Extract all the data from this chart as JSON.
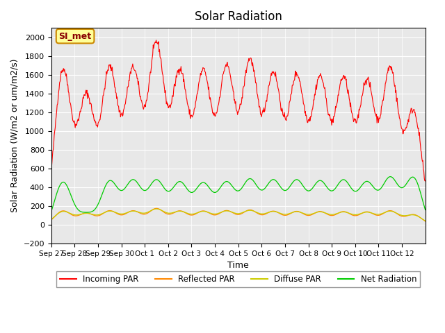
{
  "title": "Solar Radiation",
  "xlabel": "Time",
  "ylabel": "Solar Radiation (W/m2 or um/m2/s)",
  "ylim": [
    -200,
    2100
  ],
  "yticks": [
    -200,
    0,
    200,
    400,
    600,
    800,
    1000,
    1200,
    1400,
    1600,
    1800,
    2000
  ],
  "xtick_labels": [
    "Sep 27",
    "Sep 28",
    "Sep 29",
    "Sep 30",
    "Oct 1",
    "Oct 2",
    "Oct 3",
    "Oct 4",
    "Oct 5",
    "Oct 6",
    "Oct 7",
    "Oct 8",
    "Oct 9",
    "Oct 10",
    "Oct 11",
    "Oct 12"
  ],
  "legend_labels": [
    "Incoming PAR",
    "Reflected PAR",
    "Diffuse PAR",
    "Net Radiation"
  ],
  "legend_colors": [
    "#ff0000",
    "#ff8800",
    "#cccc00",
    "#00cc00"
  ],
  "bg_color": "#e8e8e8",
  "annotation_text": "SI_met",
  "annotation_bg": "#ffff99",
  "annotation_border": "#cc8800",
  "incoming_peaks": [
    1640,
    1350,
    1640,
    1620,
    1900,
    1610,
    1600,
    1650,
    1720,
    1580,
    1560,
    1540,
    1530,
    1500,
    1640,
    1200
  ],
  "net_day_peaks": [
    450,
    100,
    450,
    450,
    450,
    430,
    420,
    430,
    460,
    450,
    450,
    440,
    450,
    430,
    480,
    490
  ],
  "net_base": -80,
  "days": 16,
  "pts_per_day": 48
}
